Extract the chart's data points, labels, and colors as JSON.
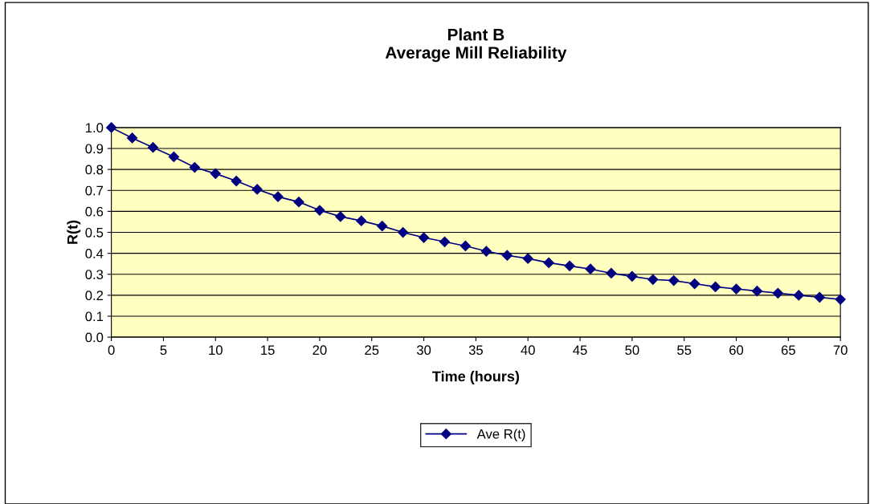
{
  "chart_data": {
    "type": "line",
    "title": "Plant B\nAverage Mill Reliability",
    "xlabel": "Time (hours)",
    "ylabel": "R(t)",
    "x": [
      0,
      2,
      4,
      6,
      8,
      10,
      12,
      14,
      16,
      18,
      20,
      22,
      24,
      26,
      28,
      30,
      32,
      34,
      36,
      38,
      40,
      42,
      44,
      46,
      48,
      50,
      52,
      54,
      56,
      58,
      60,
      62,
      64,
      66,
      68,
      70
    ],
    "series": [
      {
        "name": "Ave R(t)",
        "color": "#000080",
        "values": [
          1.0,
          0.95,
          0.905,
          0.86,
          0.81,
          0.78,
          0.745,
          0.705,
          0.67,
          0.645,
          0.605,
          0.575,
          0.555,
          0.53,
          0.5,
          0.475,
          0.455,
          0.435,
          0.41,
          0.39,
          0.375,
          0.355,
          0.34,
          0.325,
          0.305,
          0.29,
          0.275,
          0.27,
          0.255,
          0.24,
          0.23,
          0.22,
          0.21,
          0.2,
          0.19,
          0.18
        ]
      }
    ],
    "xlim": [
      0,
      70
    ],
    "xticks": [
      0,
      5,
      10,
      15,
      20,
      25,
      30,
      35,
      40,
      45,
      50,
      55,
      60,
      65,
      70
    ],
    "ylim": [
      0,
      1.0
    ],
    "yticks": [
      {
        "value": 0,
        "label": "0.0"
      },
      {
        "value": 0.1,
        "label": "0.1"
      },
      {
        "value": 0.2,
        "label": "0.2"
      },
      {
        "value": 0.3,
        "label": "0.3"
      },
      {
        "value": 0.4,
        "label": "0.4"
      },
      {
        "value": 0.5,
        "label": "0.5"
      },
      {
        "value": 0.6,
        "label": "0.6"
      },
      {
        "value": 0.7,
        "label": "0.7"
      },
      {
        "value": 0.8,
        "label": "0.8"
      },
      {
        "value": 0.9,
        "label": "0.9"
      },
      {
        "value": 1.0,
        "label": "1.0"
      }
    ],
    "grid": "y",
    "legend": "bottom",
    "marker": "diamond",
    "line_style": "solid"
  }
}
